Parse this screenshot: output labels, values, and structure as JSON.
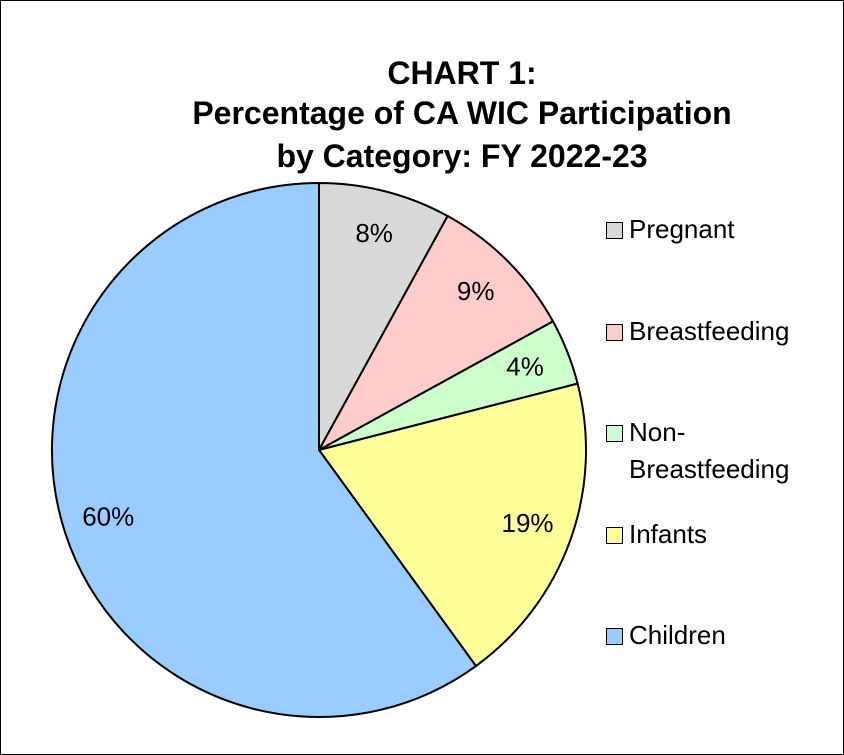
{
  "chart_data": {
    "type": "pie",
    "title": [
      "CHART 1:",
      "Percentage of CA WIC Participation",
      "by Category: FY 2022-23"
    ],
    "categories": [
      "Pregnant",
      "Breastfeeding",
      "Non-Breastfeeding",
      "Infants",
      "Children"
    ],
    "values": [
      8,
      9,
      4,
      19,
      60
    ],
    "value_labels": [
      "8%",
      "9%",
      "4%",
      "19%",
      "60%"
    ],
    "colors": [
      "#d9d9d9",
      "#ffcccc",
      "#ccffcc",
      "#ffff99",
      "#99ccff"
    ]
  }
}
